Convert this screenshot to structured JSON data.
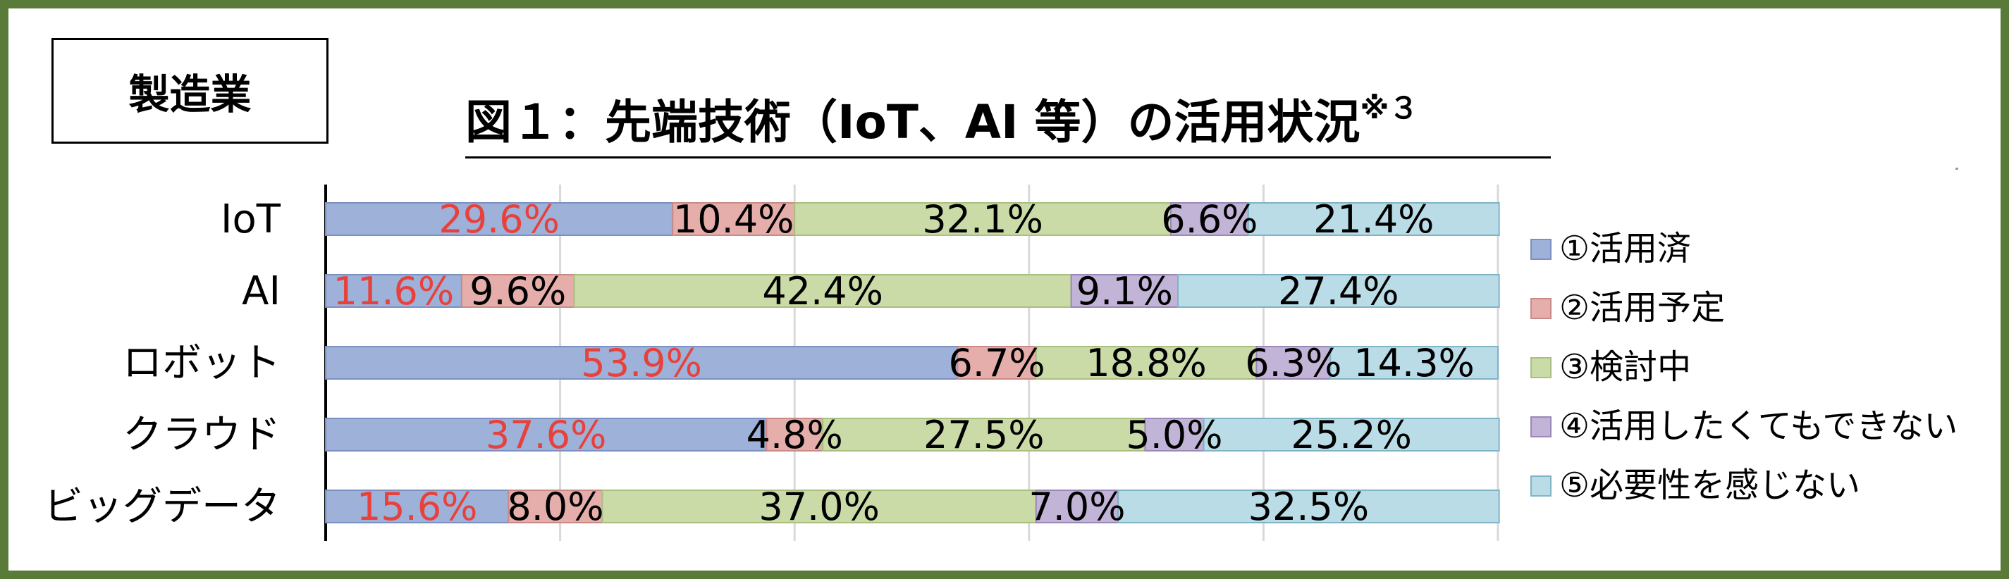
{
  "badge": "製造業",
  "title": {
    "main": "図１：先端技術（IoT、AI 等）の活用状況",
    "note": "※３"
  },
  "chart_data": {
    "type": "bar",
    "orientation": "horizontal",
    "stacked": true,
    "percent_stacked": true,
    "categories": [
      "IoT",
      "AI",
      "ロボット",
      "クラウド",
      "ビッグデータ"
    ],
    "series": [
      {
        "name": "①活用済",
        "values": [
          29.6,
          11.6,
          53.9,
          37.6,
          15.6
        ],
        "labels": [
          "29.6%",
          "11.6%",
          "53.9%",
          "37.6%",
          "15.6%"
        ],
        "color": "#9db1d9",
        "border": "#7a90c0",
        "label_color": "#e8413b"
      },
      {
        "name": "②活用予定",
        "values": [
          10.4,
          9.6,
          6.7,
          4.8,
          8.0
        ],
        "labels": [
          "10.4%",
          "9.6%",
          "6.7%",
          "4.8%",
          "8.0%"
        ],
        "color": "#e5aeab",
        "border": "#c98a87",
        "label_color": "#000000"
      },
      {
        "name": "③検討中",
        "values": [
          32.1,
          42.4,
          18.8,
          27.5,
          37.0
        ],
        "labels": [
          "32.1%",
          "42.4%",
          "18.8%",
          "27.5%",
          "37.0%"
        ],
        "color": "#cbdba7",
        "border": "#a9bf7f",
        "label_color": "#000000"
      },
      {
        "name": "④活用したくてもできない",
        "values": [
          6.6,
          9.1,
          6.3,
          5.0,
          7.0
        ],
        "labels": [
          "6.6%",
          "9.1%",
          "6.3%",
          "5.0%",
          "7.0%"
        ],
        "color": "#c2b4d6",
        "border": "#9a88b8",
        "label_color": "#000000"
      },
      {
        "name": "⑤必要性を感じない",
        "values": [
          21.4,
          27.4,
          14.3,
          25.2,
          32.5
        ],
        "labels": [
          "21.4%",
          "27.4%",
          "14.3%",
          "25.2%",
          "32.5%"
        ],
        "color": "#b9dce6",
        "border": "#7fb3c6",
        "label_color": "#000000"
      }
    ],
    "xlim": [
      0,
      100
    ],
    "grid": true,
    "legend": "right"
  }
}
